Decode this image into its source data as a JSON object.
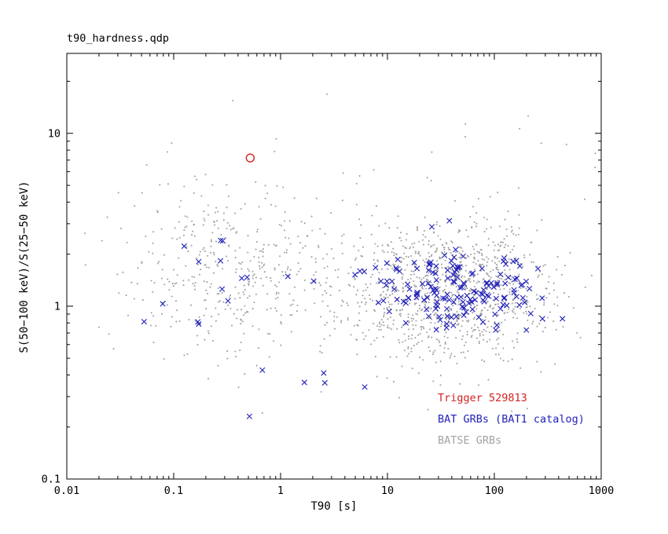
{
  "chart_data": {
    "type": "scatter",
    "title": "t90_hardness.qdp",
    "xlabel": "T90 [s]",
    "ylabel": "S(50−100 keV)/S(25−50 keV)",
    "xscale": "log",
    "yscale": "log",
    "xlim": [
      0.01,
      1000
    ],
    "ylim": [
      0.1,
      29
    ],
    "grid": false,
    "frame_color": "#000000",
    "background_color": "#ffffff",
    "seed": 20,
    "x_ticks": [
      {
        "value": 0.01,
        "label": "0.01"
      },
      {
        "value": 0.1,
        "label": "0.1"
      },
      {
        "value": 1,
        "label": "1"
      },
      {
        "value": 10,
        "label": "10"
      },
      {
        "value": 100,
        "label": "100"
      },
      {
        "value": 1000,
        "label": "1000"
      }
    ],
    "y_ticks": [
      {
        "value": 0.1,
        "label": "0.1"
      },
      {
        "value": 1,
        "label": "1"
      },
      {
        "value": 10,
        "label": "10"
      }
    ],
    "series": [
      {
        "name": "BATSE GRBs",
        "data_name": "batse-points",
        "marker": "dot",
        "color": "#a3a3a3",
        "clusters": [
          {
            "n": 430,
            "cx": -0.42,
            "sx": 0.52,
            "cy": 0.2,
            "sy": 0.24
          },
          {
            "n": 1080,
            "cx": 1.58,
            "sx": 0.5,
            "cy": 0.08,
            "sy": 0.21
          },
          {
            "n": 45,
            "cx": 0.75,
            "sx": 1.05,
            "cy": 0.55,
            "sy": 0.38
          }
        ]
      },
      {
        "name": "BAT GRBs (BAT1 catalog)",
        "data_name": "bat-points",
        "marker": "x",
        "color": "#2222bb",
        "clusters": [
          {
            "n": 165,
            "cx": 1.66,
            "sx": 0.46,
            "cy": 0.09,
            "sy": 0.115
          },
          {
            "n": 14,
            "cx": -0.78,
            "sx": 0.42,
            "cy": 0.16,
            "sy": 0.13
          },
          {
            "n": 6,
            "cx": 0.15,
            "sx": 0.55,
            "cy": -0.38,
            "sy": 0.16
          }
        ]
      },
      {
        "name": "Trigger 529813",
        "data_name": "trigger-point",
        "marker": "circle-open",
        "color": "#d42222",
        "points": [
          [
            0.52,
            7.2
          ]
        ]
      }
    ],
    "legend": {
      "position": "bottom-right-inside",
      "items": [
        {
          "label": "Trigger 529813",
          "color": "#d42222"
        },
        {
          "label": "BAT GRBs (BAT1 catalog)",
          "color": "#2222bb"
        },
        {
          "label": "BATSE GRBs",
          "color": "#a3a3a3"
        }
      ]
    }
  }
}
